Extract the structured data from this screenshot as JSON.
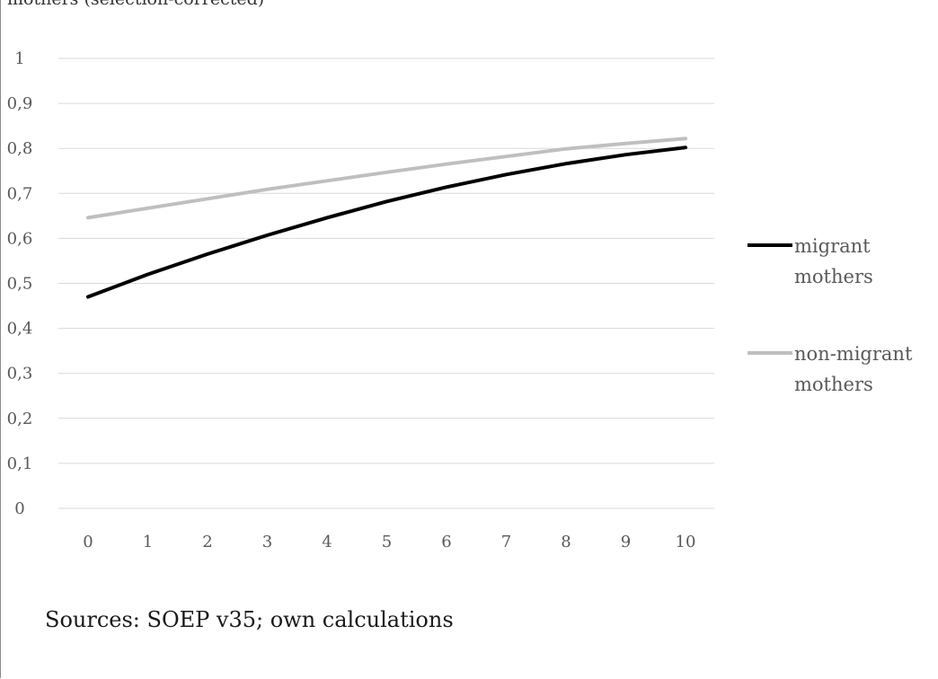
{
  "page": {
    "top_caption": "mothers (selection-corrected)",
    "source_note": "Sources: SOEP v35; own calculations"
  },
  "chart_data": {
    "type": "line",
    "x": [
      0,
      1,
      2,
      3,
      4,
      5,
      6,
      7,
      8,
      9,
      10
    ],
    "x_tick_labels": [
      "0",
      "1",
      "2",
      "3",
      "4",
      "5",
      "6",
      "7",
      "8",
      "9",
      "10"
    ],
    "y_tick_labels": [
      "0",
      "0,1",
      "0,2",
      "0,3",
      "0,4",
      "0,5",
      "0,6",
      "0,7",
      "0,8",
      "0,9",
      "1"
    ],
    "ylim": [
      0,
      1
    ],
    "y_ticks": [
      0,
      0.1,
      0.2,
      0.3,
      0.4,
      0.5,
      0.6,
      0.7,
      0.8,
      0.9,
      1
    ],
    "grid": "horizontal",
    "legend_position": "right",
    "series": [
      {
        "name_lines": [
          "migrant",
          "mothers"
        ],
        "color": "#000000",
        "values": [
          0.47,
          0.52,
          0.565,
          0.607,
          0.646,
          0.682,
          0.714,
          0.742,
          0.766,
          0.786,
          0.802
        ]
      },
      {
        "name_lines": [
          "non-migrant",
          "mothers"
        ],
        "color": "#bfbfbf",
        "values": [
          0.646,
          0.667,
          0.688,
          0.709,
          0.728,
          0.747,
          0.765,
          0.782,
          0.799,
          0.811,
          0.822
        ]
      }
    ]
  }
}
